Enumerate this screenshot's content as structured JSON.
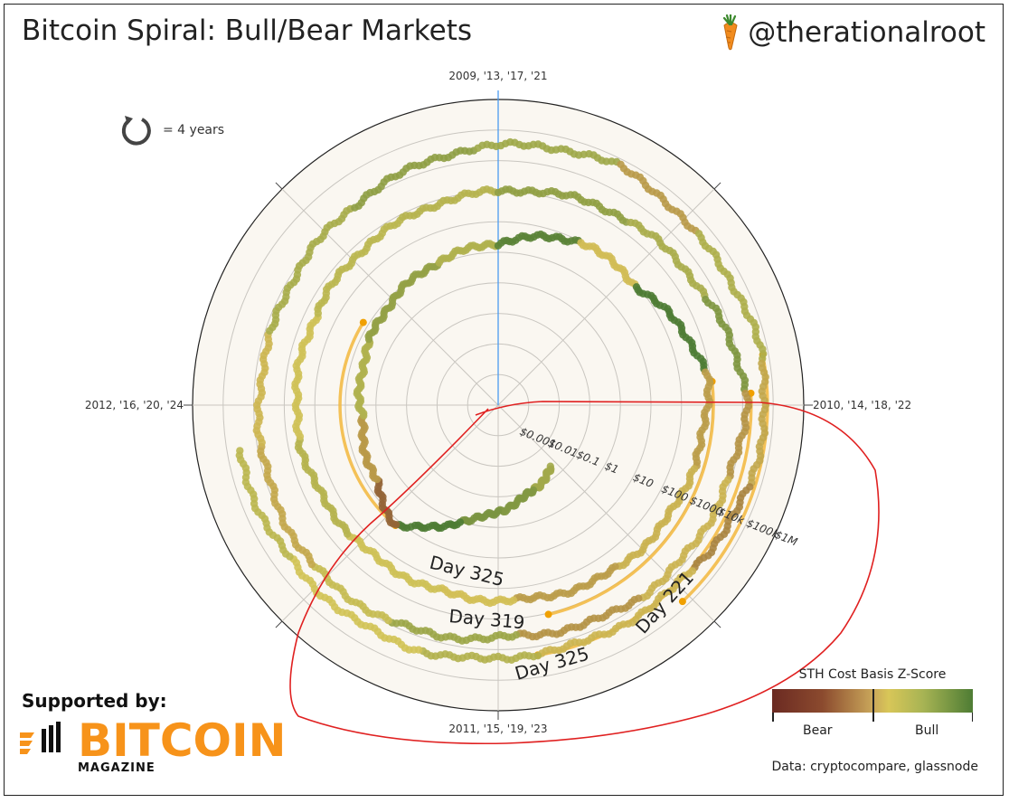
{
  "header": {
    "title": "Bitcoin Spiral: Bull/Bear Markets",
    "handle": "@therationalroot"
  },
  "rotation_note": "= 4 years",
  "footer": {
    "supported_by": "Supported by:",
    "sponsor_word": "BITCOIN",
    "sponsor_sub": "MAGAZINE",
    "data_source": "Data: cryptocompare, glassnode"
  },
  "legend": {
    "title": "STH Cost Basis Z-Score",
    "bear": "Bear",
    "bull": "Bull"
  },
  "colors": {
    "bear": "#6b2a22",
    "neutral": "#d8c658",
    "bull": "#4e7c34",
    "highlight_arc": "#f2b73c",
    "annotation": "#e02020",
    "year_axis": "#4a9bf0"
  },
  "chart_data": {
    "type": "polar-spiral",
    "title": "Bitcoin Spiral: Bull/Bear Markets",
    "angular_labels": {
      "top": "2009, '13, '17, '21",
      "right": "2010, '14, '18, '22",
      "bottom": "2011, '15, '19, '23",
      "left": "2012, '16, '20, '24"
    },
    "radial_ticks": [
      "$0.001",
      "$0.01",
      "$0.1",
      "$1",
      "$10",
      "$100",
      "$1000",
      "$10k",
      "$100k",
      "$1M"
    ],
    "radial_scale": "log",
    "radial_range": [
      0.0001,
      1000000
    ],
    "series": [
      {
        "values": [
          {
            "year": 2010.55,
            "price": 0.05
          },
          {
            "year": 2010.75,
            "price": 0.1
          },
          {
            "year": 2011.0,
            "price": 0.3
          },
          {
            "year": 2011.2,
            "price": 1
          },
          {
            "year": 2011.45,
            "price": 15
          },
          {
            "year": 2011.65,
            "price": 5
          },
          {
            "year": 2011.95,
            "price": 3
          },
          {
            "year": 2012.3,
            "price": 5
          },
          {
            "year": 2012.75,
            "price": 12
          },
          {
            "year": 2013.0,
            "price": 20
          },
          {
            "year": 2013.3,
            "price": 100
          },
          {
            "year": 2013.55,
            "price": 90
          },
          {
            "year": 2013.9,
            "price": 800
          },
          {
            "year": 2014.2,
            "price": 500
          },
          {
            "year": 2014.6,
            "price": 400
          },
          {
            "year": 2014.95,
            "price": 250
          },
          {
            "year": 2015.2,
            "price": 230
          },
          {
            "year": 2015.55,
            "price": 260
          },
          {
            "year": 2015.9,
            "price": 400
          },
          {
            "year": 2016.3,
            "price": 450
          },
          {
            "year": 2016.7,
            "price": 650
          },
          {
            "year": 2017.0,
            "price": 1000
          },
          {
            "year": 2017.4,
            "price": 2500
          },
          {
            "year": 2017.7,
            "price": 4500
          },
          {
            "year": 2017.97,
            "price": 14000
          },
          {
            "year": 2018.2,
            "price": 8000
          },
          {
            "year": 2018.6,
            "price": 6500
          },
          {
            "year": 2018.95,
            "price": 3700
          },
          {
            "year": 2019.3,
            "price": 8000
          },
          {
            "year": 2019.55,
            "price": 10000
          },
          {
            "year": 2019.9,
            "price": 7200
          },
          {
            "year": 2020.2,
            "price": 6000
          },
          {
            "year": 2020.6,
            "price": 11000
          },
          {
            "year": 2020.95,
            "price": 28000
          },
          {
            "year": 2021.3,
            "price": 58000
          },
          {
            "year": 2021.55,
            "price": 35000
          },
          {
            "year": 2021.9,
            "price": 60000
          },
          {
            "year": 2022.2,
            "price": 42000
          },
          {
            "year": 2022.45,
            "price": 20000
          },
          {
            "year": 2022.9,
            "price": 16500
          },
          {
            "year": 2023.2,
            "price": 27000
          },
          {
            "year": 2023.6,
            "price": 29000
          },
          {
            "year": 2023.9,
            "price": 42000
          }
        ]
      }
    ],
    "annotations": [
      {
        "label": "Day 325"
      },
      {
        "label": "Day 319"
      },
      {
        "label": "Day 325"
      },
      {
        "label": "Day 221"
      }
    ]
  }
}
